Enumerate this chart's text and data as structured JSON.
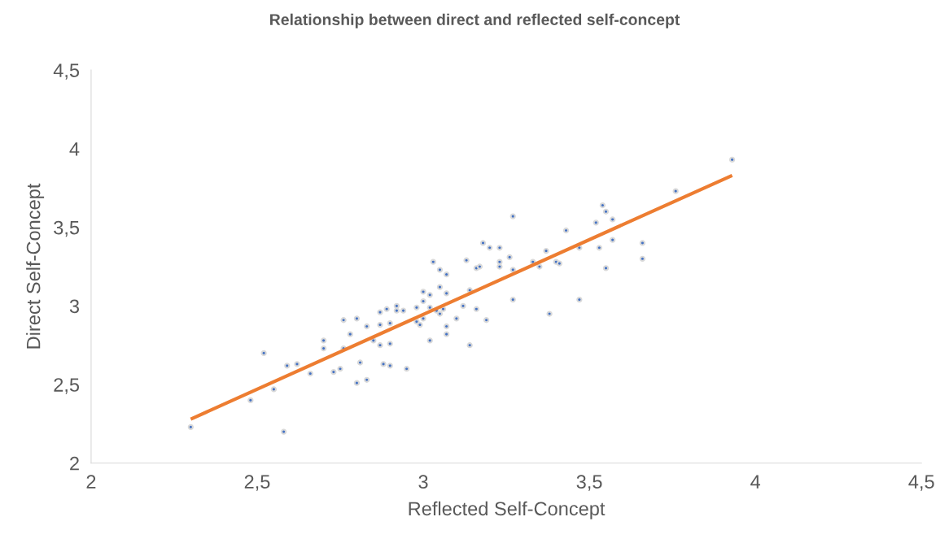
{
  "chart_data": {
    "type": "scatter",
    "title": "Relationship between direct and reflected self-concept",
    "xlabel": "Reflected Self-Concept",
    "ylabel": "Direct Self-Concept",
    "xlim": [
      2,
      4.5
    ],
    "ylim": [
      2,
      4.5
    ],
    "xticks": [
      2,
      {
        "value": 2.5,
        "label": "2,5"
      },
      3,
      {
        "value": 3.5,
        "label": "3,5"
      },
      4,
      {
        "value": 4.5,
        "label": "4,5"
      }
    ],
    "yticks": [
      2,
      {
        "value": 2.5,
        "label": "2,5"
      },
      3,
      {
        "value": 3.5,
        "label": "3,5"
      },
      4,
      {
        "value": 4.5,
        "label": "4,5"
      }
    ],
    "grid": false,
    "series": [
      {
        "marker": "circle",
        "color": "#4472c4",
        "x": [
          2.3,
          2.48,
          2.52,
          2.55,
          2.58,
          2.59,
          2.62,
          2.66,
          2.7,
          2.7,
          2.73,
          2.75,
          2.76,
          2.76,
          2.78,
          2.8,
          2.8,
          2.81,
          2.83,
          2.83,
          2.85,
          2.87,
          2.87,
          2.87,
          2.88,
          2.89,
          2.9,
          2.9,
          2.9,
          2.92,
          2.92,
          2.94,
          2.95,
          2.98,
          2.98,
          2.99,
          3.0,
          3.0,
          3.0,
          3.02,
          3.02,
          3.02,
          3.03,
          3.04,
          3.05,
          3.05,
          3.05,
          3.06,
          3.07,
          3.07,
          3.07,
          3.07,
          3.1,
          3.12,
          3.13,
          3.14,
          3.14,
          3.16,
          3.16,
          3.17,
          3.18,
          3.19,
          3.2,
          3.23,
          3.23,
          3.23,
          3.26,
          3.27,
          3.27,
          3.27,
          3.33,
          3.35,
          3.37,
          3.38,
          3.4,
          3.41,
          3.43,
          3.47,
          3.47,
          3.52,
          3.53,
          3.54,
          3.55,
          3.55,
          3.57,
          3.57,
          3.66,
          3.66,
          3.76,
          3.93
        ],
        "values": [
          2.23,
          2.4,
          2.7,
          2.47,
          2.2,
          2.62,
          2.63,
          2.57,
          2.78,
          2.73,
          2.58,
          2.6,
          2.91,
          2.73,
          2.82,
          2.92,
          2.51,
          2.64,
          2.53,
          2.87,
          2.78,
          2.96,
          2.88,
          2.75,
          2.63,
          2.98,
          2.89,
          2.76,
          2.62,
          3.0,
          2.97,
          2.97,
          2.6,
          2.99,
          2.9,
          2.88,
          3.09,
          3.03,
          2.92,
          3.07,
          2.99,
          2.78,
          3.28,
          2.97,
          3.12,
          3.23,
          2.95,
          2.98,
          3.2,
          3.08,
          2.87,
          2.82,
          2.92,
          3.0,
          3.29,
          3.1,
          2.75,
          3.24,
          2.98,
          3.25,
          3.4,
          2.91,
          3.37,
          3.37,
          3.28,
          3.25,
          3.31,
          3.57,
          3.23,
          3.04,
          3.28,
          3.25,
          3.35,
          2.95,
          3.28,
          3.27,
          3.48,
          3.37,
          3.04,
          3.53,
          3.37,
          3.64,
          3.6,
          3.24,
          3.55,
          3.42,
          3.4,
          3.3,
          3.73,
          3.93
        ]
      },
      {
        "type": "line",
        "color": "#ed7d31",
        "marker": "none",
        "x": [
          2.3,
          3.93
        ],
        "values": [
          2.28,
          3.83
        ]
      }
    ],
    "legend": false
  }
}
